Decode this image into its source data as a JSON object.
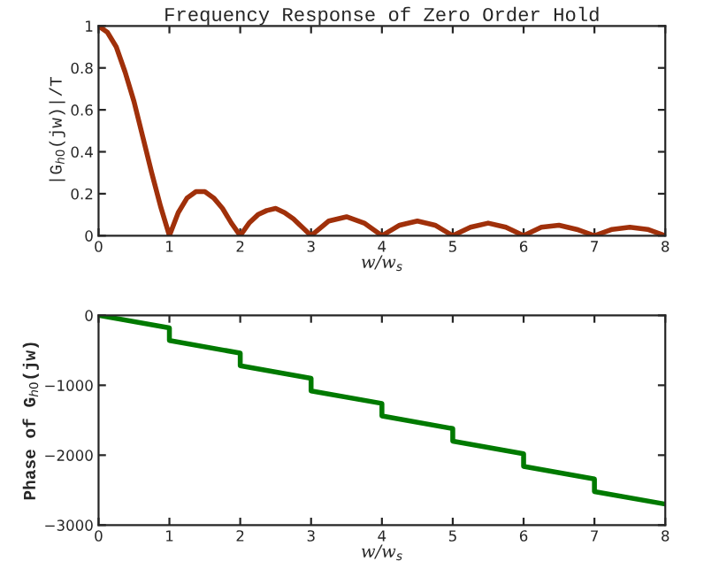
{
  "chart_data": [
    {
      "type": "line",
      "title": "Frequency Response of Zero Order Hold",
      "xlabel": "w/w$_{s}$",
      "ylabel": "|G$_{h0}$(jw)|/T",
      "xlim": [
        0,
        8
      ],
      "xticks": [
        0,
        1,
        2,
        3,
        4,
        5,
        6,
        7,
        8
      ],
      "ylim": [
        0,
        1
      ],
      "yticks": [
        0,
        0.2,
        0.4,
        0.6,
        0.8,
        1
      ],
      "grid": false,
      "marker": "none",
      "line_style": "solid",
      "series": [
        {
          "color": "#a0300a",
          "x": [
            0,
            0.125,
            0.25,
            0.375,
            0.5,
            0.625,
            0.75,
            0.875,
            1,
            1.125,
            1.25,
            1.375,
            1.5,
            1.625,
            1.75,
            1.875,
            2,
            2.125,
            2.25,
            2.375,
            2.5,
            2.625,
            2.75,
            2.875,
            3,
            3.25,
            3.5,
            3.75,
            4,
            4.25,
            4.5,
            4.75,
            5,
            5.25,
            5.5,
            5.75,
            6,
            6.25,
            6.5,
            6.75,
            7,
            7.25,
            7.5,
            7.75,
            8
          ],
          "values": [
            1,
            0.97,
            0.9,
            0.78,
            0.64,
            0.47,
            0.3,
            0.14,
            0,
            0.11,
            0.18,
            0.21,
            0.21,
            0.18,
            0.13,
            0.06,
            0,
            0.06,
            0.1,
            0.12,
            0.13,
            0.11,
            0.08,
            0.04,
            0,
            0.07,
            0.09,
            0.06,
            0,
            0.05,
            0.07,
            0.05,
            0,
            0.04,
            0.06,
            0.04,
            0,
            0.04,
            0.05,
            0.03,
            0,
            0.03,
            0.04,
            0.03,
            0
          ]
        }
      ]
    },
    {
      "type": "line",
      "xlabel": "w/w$_{s}$",
      "ylabel": "Phase of G$_{h0}$(jw)",
      "xlim": [
        0,
        8
      ],
      "xticks": [
        0,
        1,
        2,
        3,
        4,
        5,
        6,
        7,
        8
      ],
      "ylim": [
        -3000,
        0
      ],
      "yticks": [
        0,
        {
          "value": -1000,
          "label": "−1000"
        },
        {
          "value": -2000,
          "label": "−2000"
        },
        {
          "value": -3000,
          "label": "−3000"
        }
      ],
      "grid": false,
      "marker": "none",
      "line_style": "solid",
      "series": [
        {
          "color": "#007a00",
          "x": [
            0,
            1,
            1,
            2,
            2,
            3,
            3,
            4,
            4,
            5,
            5,
            6,
            6,
            7,
            7,
            8
          ],
          "values": [
            0,
            -180,
            -360,
            -540,
            -720,
            -900,
            -1080,
            -1260,
            -1440,
            -1620,
            -1800,
            -1980,
            -2160,
            -2340,
            -2520,
            -2700
          ]
        }
      ]
    }
  ]
}
